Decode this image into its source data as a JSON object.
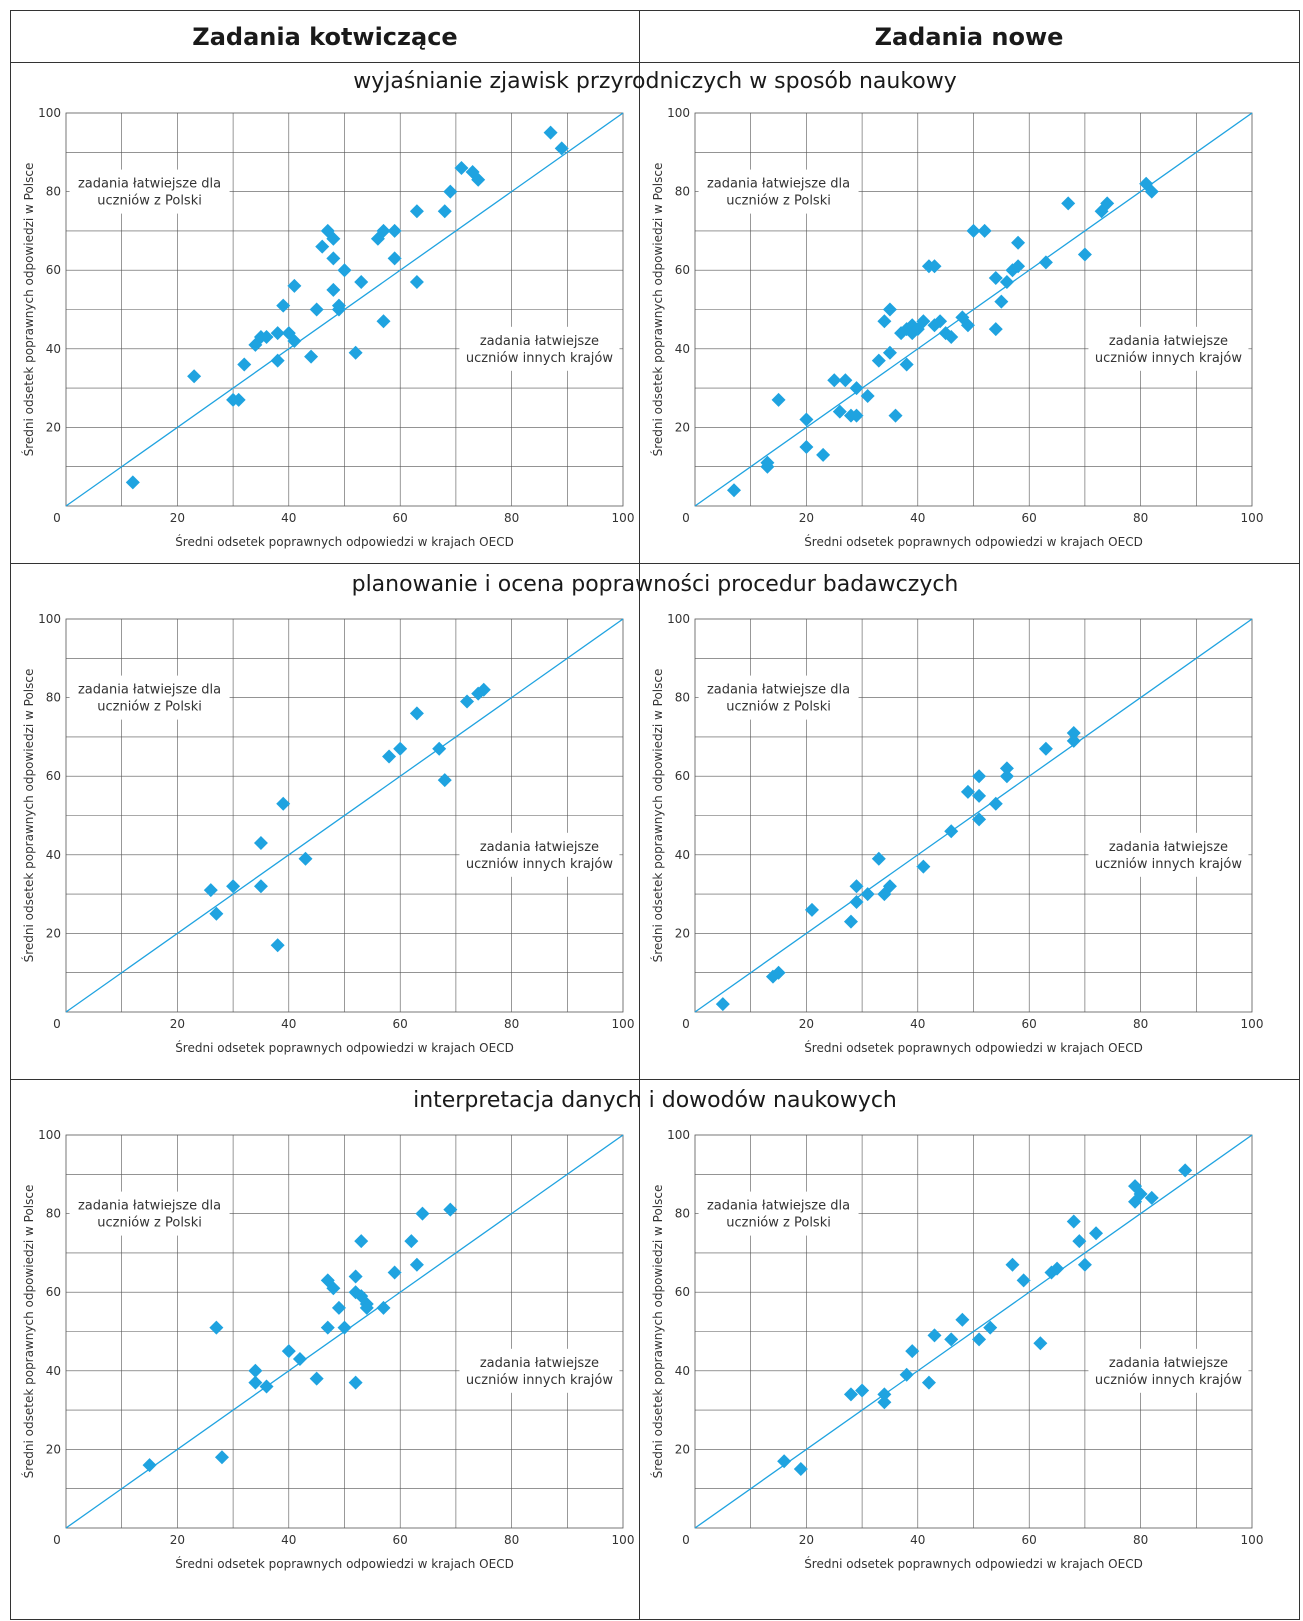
{
  "headers": {
    "left": "Zadania kotwiczące",
    "right": "Zadania nowe"
  },
  "sections": [
    {
      "title": "wyjaśnianie zjawisk przyrodniczych w sposób naukowy"
    },
    {
      "title": "planowanie i ocena poprawności procedur badawczych"
    },
    {
      "title": "interpretacja danych i dowodów naukowych"
    }
  ],
  "axes": {
    "xlabel": "Średni odsetek poprawnych odpowiedzi w krajach OECD",
    "ylabel": "Średni odsetek poprawnych odpowiedzi w Polsce",
    "xlim": [
      0,
      100
    ],
    "ylim": [
      0,
      100
    ],
    "xticks": [
      0,
      20,
      40,
      60,
      80,
      100
    ],
    "yticks": [
      20,
      40,
      60,
      80,
      100
    ],
    "grid": true
  },
  "annotations": {
    "upper": [
      "zadania łatwiejsze dla",
      "uczniów z Polski"
    ],
    "lower": [
      "zadania łatwiejsze",
      "uczniów innych krajów"
    ]
  },
  "colors": {
    "point": "#1fa3e0",
    "diagonal": "#1fa3e0",
    "grid": "#555555"
  },
  "chart_data": [
    {
      "type": "scatter",
      "section": 0,
      "column": "left",
      "reference_line": "y=x",
      "points": [
        [
          12,
          6
        ],
        [
          23,
          33
        ],
        [
          30,
          27
        ],
        [
          31,
          27
        ],
        [
          32,
          36
        ],
        [
          34,
          41
        ],
        [
          35,
          43
        ],
        [
          36,
          43
        ],
        [
          38,
          44
        ],
        [
          38,
          37
        ],
        [
          39,
          51
        ],
        [
          40,
          44
        ],
        [
          41,
          42
        ],
        [
          41,
          56
        ],
        [
          44,
          38
        ],
        [
          45,
          50
        ],
        [
          46,
          66
        ],
        [
          47,
          70
        ],
        [
          48,
          55
        ],
        [
          48,
          63
        ],
        [
          48,
          68
        ],
        [
          49,
          51
        ],
        [
          49,
          50
        ],
        [
          50,
          60
        ],
        [
          52,
          39
        ],
        [
          53,
          57
        ],
        [
          56,
          68
        ],
        [
          57,
          70
        ],
        [
          57,
          47
        ],
        [
          59,
          63
        ],
        [
          59,
          70
        ],
        [
          63,
          57
        ],
        [
          63,
          75
        ],
        [
          68,
          75
        ],
        [
          69,
          80
        ],
        [
          71,
          86
        ],
        [
          73,
          85
        ],
        [
          74,
          83
        ],
        [
          87,
          95
        ],
        [
          89,
          91
        ]
      ]
    },
    {
      "type": "scatter",
      "section": 0,
      "column": "right",
      "reference_line": "y=x",
      "points": [
        [
          7,
          4
        ],
        [
          13,
          10
        ],
        [
          13,
          11
        ],
        [
          15,
          27
        ],
        [
          20,
          15
        ],
        [
          20,
          22
        ],
        [
          23,
          13
        ],
        [
          25,
          32
        ],
        [
          26,
          24
        ],
        [
          27,
          32
        ],
        [
          28,
          23
        ],
        [
          29,
          30
        ],
        [
          29,
          23
        ],
        [
          31,
          28
        ],
        [
          33,
          37
        ],
        [
          34,
          47
        ],
        [
          35,
          39
        ],
        [
          35,
          50
        ],
        [
          36,
          23
        ],
        [
          37,
          44
        ],
        [
          38,
          45
        ],
        [
          38,
          36
        ],
        [
          39,
          46
        ],
        [
          39,
          44
        ],
        [
          40,
          45
        ],
        [
          41,
          47
        ],
        [
          42,
          61
        ],
        [
          43,
          46
        ],
        [
          43,
          61
        ],
        [
          44,
          47
        ],
        [
          45,
          44
        ],
        [
          46,
          43
        ],
        [
          48,
          48
        ],
        [
          49,
          46
        ],
        [
          50,
          70
        ],
        [
          52,
          70
        ],
        [
          54,
          58
        ],
        [
          54,
          45
        ],
        [
          55,
          52
        ],
        [
          56,
          57
        ],
        [
          57,
          60
        ],
        [
          58,
          61
        ],
        [
          58,
          67
        ],
        [
          63,
          62
        ],
        [
          67,
          77
        ],
        [
          70,
          64
        ],
        [
          73,
          75
        ],
        [
          74,
          77
        ],
        [
          81,
          82
        ],
        [
          82,
          80
        ]
      ]
    },
    {
      "type": "scatter",
      "section": 1,
      "column": "left",
      "reference_line": "y=x",
      "points": [
        [
          26,
          31
        ],
        [
          27,
          25
        ],
        [
          30,
          32
        ],
        [
          35,
          32
        ],
        [
          35,
          43
        ],
        [
          38,
          17
        ],
        [
          39,
          53
        ],
        [
          43,
          39
        ],
        [
          58,
          65
        ],
        [
          60,
          67
        ],
        [
          63,
          76
        ],
        [
          67,
          67
        ],
        [
          68,
          59
        ],
        [
          72,
          79
        ],
        [
          74,
          81
        ],
        [
          75,
          82
        ]
      ]
    },
    {
      "type": "scatter",
      "section": 1,
      "column": "right",
      "reference_line": "y=x",
      "points": [
        [
          5,
          2
        ],
        [
          14,
          9
        ],
        [
          15,
          10
        ],
        [
          21,
          26
        ],
        [
          28,
          23
        ],
        [
          29,
          28
        ],
        [
          29,
          32
        ],
        [
          31,
          30
        ],
        [
          33,
          39
        ],
        [
          34,
          30
        ],
        [
          35,
          32
        ],
        [
          41,
          37
        ],
        [
          46,
          46
        ],
        [
          49,
          56
        ],
        [
          51,
          49
        ],
        [
          51,
          55
        ],
        [
          51,
          60
        ],
        [
          54,
          53
        ],
        [
          56,
          60
        ],
        [
          56,
          62
        ],
        [
          63,
          67
        ],
        [
          68,
          69
        ],
        [
          68,
          71
        ]
      ]
    },
    {
      "type": "scatter",
      "section": 2,
      "column": "left",
      "reference_line": "y=x",
      "points": [
        [
          15,
          16
        ],
        [
          27,
          51
        ],
        [
          28,
          18
        ],
        [
          34,
          40
        ],
        [
          34,
          37
        ],
        [
          36,
          36
        ],
        [
          40,
          45
        ],
        [
          42,
          43
        ],
        [
          45,
          38
        ],
        [
          47,
          63
        ],
        [
          47,
          51
        ],
        [
          48,
          61
        ],
        [
          49,
          56
        ],
        [
          50,
          51
        ],
        [
          52,
          37
        ],
        [
          52,
          64
        ],
        [
          52,
          60
        ],
        [
          53,
          73
        ],
        [
          53,
          59
        ],
        [
          54,
          57
        ],
        [
          54,
          56
        ],
        [
          57,
          56
        ],
        [
          59,
          65
        ],
        [
          62,
          73
        ],
        [
          63,
          67
        ],
        [
          64,
          80
        ],
        [
          69,
          81
        ]
      ]
    },
    {
      "type": "scatter",
      "section": 2,
      "column": "right",
      "reference_line": "y=x",
      "points": [
        [
          16,
          17
        ],
        [
          19,
          15
        ],
        [
          28,
          34
        ],
        [
          30,
          35
        ],
        [
          34,
          32
        ],
        [
          34,
          34
        ],
        [
          38,
          39
        ],
        [
          39,
          45
        ],
        [
          42,
          37
        ],
        [
          43,
          49
        ],
        [
          46,
          48
        ],
        [
          48,
          53
        ],
        [
          51,
          48
        ],
        [
          53,
          51
        ],
        [
          57,
          67
        ],
        [
          59,
          63
        ],
        [
          62,
          47
        ],
        [
          64,
          65
        ],
        [
          65,
          66
        ],
        [
          68,
          78
        ],
        [
          69,
          73
        ],
        [
          70,
          67
        ],
        [
          72,
          75
        ],
        [
          79,
          87
        ],
        [
          79,
          83
        ],
        [
          80,
          85
        ],
        [
          82,
          84
        ],
        [
          88,
          91
        ]
      ]
    }
  ]
}
